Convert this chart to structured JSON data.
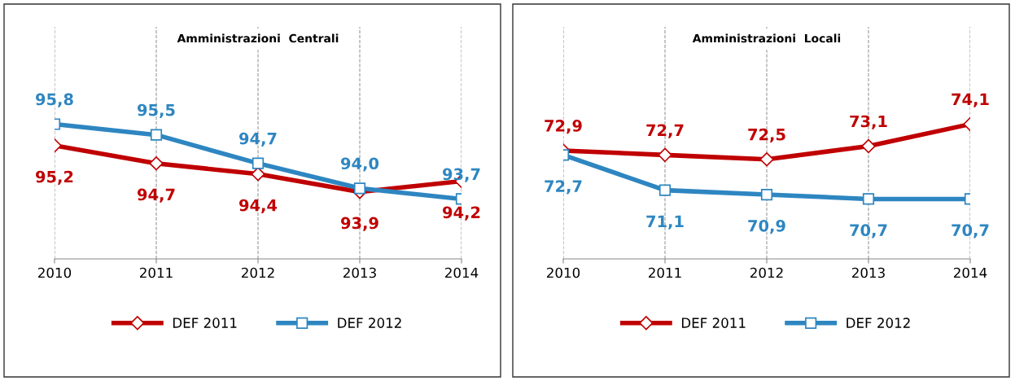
{
  "chart_data": [
    {
      "type": "line",
      "title": "Amministrazioni  Centrali",
      "categories": [
        "2010",
        "2011",
        "2012",
        "2013",
        "2014"
      ],
      "tick_labels": "x",
      "grid": "x",
      "legend": "bottom",
      "series": [
        {
          "name": "DEF 2011",
          "color": "#c00000",
          "marker": "diamond",
          "values": [
            95.2,
            94.7,
            94.4,
            93.9,
            94.2
          ],
          "value_labels": [
            "95,2",
            "94,7",
            "94,4",
            "93,9",
            "94,2"
          ]
        },
        {
          "name": "DEF 2012",
          "color": "#2e86c1",
          "marker": "square",
          "values": [
            95.8,
            95.5,
            94.7,
            94.0,
            93.7
          ],
          "value_labels": [
            "95,8",
            "95,5",
            "94,7",
            "94,0",
            "93,7"
          ]
        }
      ]
    },
    {
      "type": "line",
      "title": "Amministrazioni  Locali",
      "categories": [
        "2010",
        "2011",
        "2012",
        "2013",
        "2014"
      ],
      "tick_labels": "x",
      "grid": "x",
      "legend": "bottom",
      "series": [
        {
          "name": "DEF 2011",
          "color": "#c00000",
          "marker": "diamond",
          "values": [
            72.9,
            72.7,
            72.5,
            73.1,
            74.1
          ],
          "value_labels": [
            "72,9",
            "72,7",
            "72,5",
            "73,1",
            "74,1"
          ]
        },
        {
          "name": "DEF 2012",
          "color": "#2e86c1",
          "marker": "square",
          "values": [
            72.7,
            71.1,
            70.9,
            70.7,
            70.7
          ],
          "value_labels": [
            "72,7",
            "71,1",
            "70,9",
            "70,7",
            "70,7"
          ]
        }
      ]
    }
  ]
}
